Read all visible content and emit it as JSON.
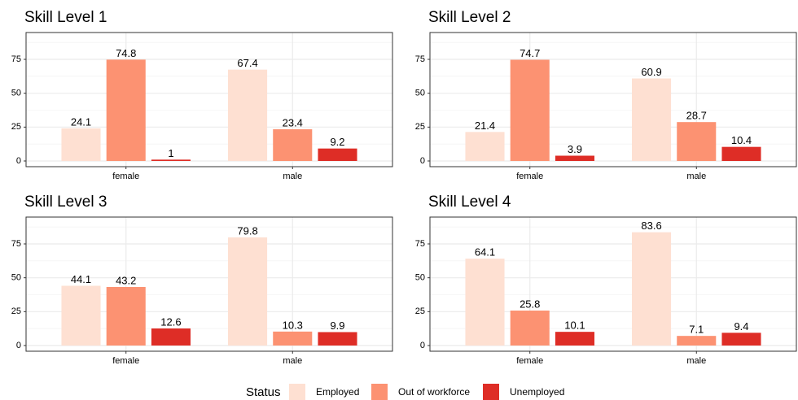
{
  "chart_data": [
    {
      "type": "bar",
      "title": "Skill Level 1",
      "categories": [
        "female",
        "male"
      ],
      "series": [
        {
          "name": "Employed",
          "color": "#fee0d2",
          "values": [
            24.1,
            67.4
          ]
        },
        {
          "name": "Out of workforce",
          "color": "#fc9272",
          "values": [
            74.8,
            23.4
          ]
        },
        {
          "name": "Unemployed",
          "color": "#de2d26",
          "values": [
            1,
            9.2
          ]
        }
      ],
      "ylim": [
        -4.2,
        94.8
      ],
      "yticks": [
        0,
        25,
        50,
        75
      ],
      "minor_yticks": [
        12.5,
        37.5,
        62.5,
        87.5
      ],
      "grid": true,
      "legend_title": "Status",
      "legend_position": "bottom"
    },
    {
      "type": "bar",
      "title": "Skill Level 2",
      "categories": [
        "female",
        "male"
      ],
      "series": [
        {
          "name": "Employed",
          "color": "#fee0d2",
          "values": [
            21.4,
            60.9
          ]
        },
        {
          "name": "Out of workforce",
          "color": "#fc9272",
          "values": [
            74.7,
            28.7
          ]
        },
        {
          "name": "Unemployed",
          "color": "#de2d26",
          "values": [
            3.9,
            10.4
          ]
        }
      ],
      "ylim": [
        -4.2,
        94.8
      ],
      "yticks": [
        0,
        25,
        50,
        75
      ],
      "minor_yticks": [
        12.5,
        37.5,
        62.5,
        87.5
      ],
      "grid": true
    },
    {
      "type": "bar",
      "title": "Skill Level 3",
      "categories": [
        "female",
        "male"
      ],
      "series": [
        {
          "name": "Employed",
          "color": "#fee0d2",
          "values": [
            44.1,
            79.8
          ]
        },
        {
          "name": "Out of workforce",
          "color": "#fc9272",
          "values": [
            43.2,
            10.3
          ]
        },
        {
          "name": "Unemployed",
          "color": "#de2d26",
          "values": [
            12.6,
            9.9
          ]
        }
      ],
      "ylim": [
        -4.2,
        94.8
      ],
      "yticks": [
        0,
        25,
        50,
        75
      ],
      "minor_yticks": [
        12.5,
        37.5,
        62.5,
        87.5
      ],
      "grid": true
    },
    {
      "type": "bar",
      "title": "Skill Level 4",
      "categories": [
        "female",
        "male"
      ],
      "series": [
        {
          "name": "Employed",
          "color": "#fee0d2",
          "values": [
            64.1,
            83.6
          ]
        },
        {
          "name": "Out of workforce",
          "color": "#fc9272",
          "values": [
            25.8,
            7.1
          ]
        },
        {
          "name": "Unemployed",
          "color": "#de2d26",
          "values": [
            10.1,
            9.4
          ]
        }
      ],
      "ylim": [
        -4.2,
        94.8
      ],
      "yticks": [
        0,
        25,
        50,
        75
      ],
      "minor_yticks": [
        12.5,
        37.5,
        62.5,
        87.5
      ],
      "grid": true
    }
  ]
}
